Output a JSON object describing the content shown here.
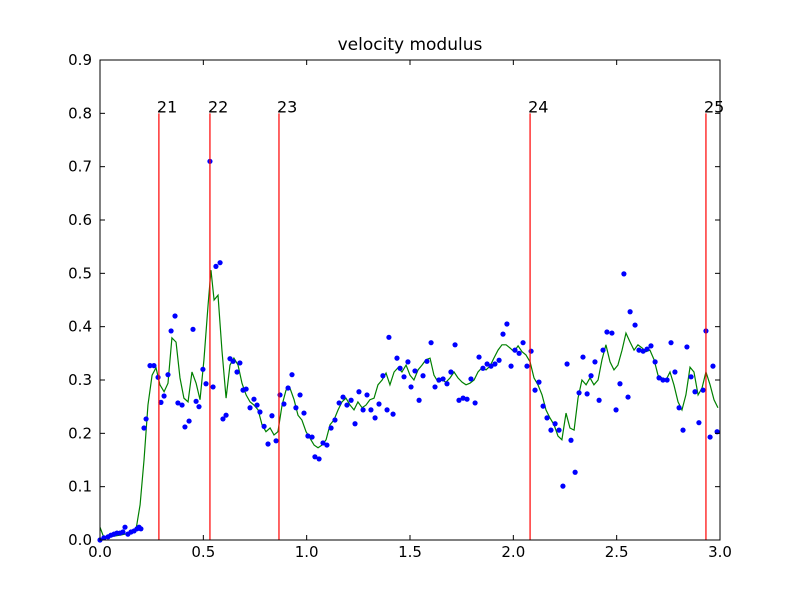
{
  "chart_data": {
    "type": "scatter",
    "title": "velocity modulus",
    "xlim": [
      0,
      3
    ],
    "ylim": [
      0,
      0.9
    ],
    "xticks": [
      {
        "value": 0,
        "label": "0.0"
      },
      {
        "value": 0.5,
        "label": "0.5"
      },
      {
        "value": 1,
        "label": "1.0"
      },
      {
        "value": 1.5,
        "label": "1.5"
      },
      {
        "value": 2,
        "label": "2.0"
      },
      {
        "value": 2.5,
        "label": "2.5"
      },
      {
        "value": 3,
        "label": "3.0"
      }
    ],
    "yticks": [
      {
        "value": 0,
        "label": "0.0"
      },
      0.1,
      0.2,
      0.3,
      0.4,
      0.5,
      0.6,
      0.7,
      0.8,
      0.9
    ],
    "markers": {
      "color": "#ff0000",
      "top": 0.8,
      "x": [
        0.285,
        0.532,
        0.866,
        2.081,
        2.932
      ],
      "labels": [
        "21",
        "22",
        "23",
        "24",
        "25"
      ]
    },
    "scatter": {
      "color": "#0000ff",
      "x": [
        0,
        0.019,
        0.039,
        0.053,
        0.068,
        0.082,
        0.097,
        0.111,
        0.121,
        0.135,
        0.15,
        0.165,
        0.179,
        0.189,
        0.198,
        0.213,
        0.223,
        0.242,
        0.261,
        0.281,
        0.295,
        0.31,
        0.329,
        0.344,
        0.363,
        0.377,
        0.397,
        0.411,
        0.431,
        0.45,
        0.465,
        0.479,
        0.498,
        0.513,
        0.532,
        0.547,
        0.561,
        0.581,
        0.595,
        0.61,
        0.629,
        0.644,
        0.663,
        0.677,
        0.692,
        0.707,
        0.726,
        0.745,
        0.76,
        0.774,
        0.794,
        0.813,
        0.832,
        0.852,
        0.871,
        0.89,
        0.91,
        0.929,
        0.948,
        0.968,
        0.987,
        1.006,
        1.026,
        1.04,
        1.06,
        1.079,
        1.098,
        1.118,
        1.137,
        1.157,
        1.176,
        1.195,
        1.215,
        1.234,
        1.253,
        1.273,
        1.292,
        1.311,
        1.331,
        1.35,
        1.369,
        1.389,
        1.398,
        1.418,
        1.437,
        1.452,
        1.471,
        1.49,
        1.505,
        1.524,
        1.544,
        1.563,
        1.582,
        1.602,
        1.621,
        1.64,
        1.66,
        1.679,
        1.698,
        1.718,
        1.737,
        1.757,
        1.776,
        1.795,
        1.815,
        1.834,
        1.853,
        1.873,
        1.892,
        1.911,
        1.931,
        1.95,
        1.969,
        1.989,
        2.008,
        2.028,
        2.047,
        2.066,
        2.086,
        2.105,
        2.124,
        2.144,
        2.163,
        2.182,
        2.202,
        2.221,
        2.24,
        2.26,
        2.279,
        2.299,
        2.318,
        2.337,
        2.357,
        2.376,
        2.395,
        2.415,
        2.434,
        2.453,
        2.477,
        2.497,
        2.516,
        2.535,
        2.555,
        2.565,
        2.589,
        2.608,
        2.628,
        2.647,
        2.666,
        2.686,
        2.705,
        2.724,
        2.744,
        2.763,
        2.782,
        2.802,
        2.821,
        2.84,
        2.86,
        2.879,
        2.898,
        2.918,
        2.932,
        2.952,
        2.966,
        2.986
      ],
      "values": [
        0,
        0.004,
        0.006,
        0.009,
        0.011,
        0.013,
        0.013,
        0.015,
        0.024,
        0.011,
        0.015,
        0.017,
        0.021,
        0.024,
        0.021,
        0.21,
        0.227,
        0.327,
        0.327,
        0.305,
        0.258,
        0.27,
        0.31,
        0.392,
        0.42,
        0.257,
        0.253,
        0.212,
        0.223,
        0.395,
        0.26,
        0.25,
        0.32,
        0.293,
        0.71,
        0.287,
        0.513,
        0.52,
        0.227,
        0.234,
        0.34,
        0.335,
        0.315,
        0.332,
        0.281,
        0.283,
        0.248,
        0.264,
        0.253,
        0.24,
        0.213,
        0.18,
        0.233,
        0.186,
        0.272,
        0.255,
        0.285,
        0.31,
        0.248,
        0.272,
        0.238,
        0.195,
        0.193,
        0.156,
        0.152,
        0.182,
        0.178,
        0.21,
        0.225,
        0.257,
        0.268,
        0.253,
        0.262,
        0.218,
        0.278,
        0.244,
        0.272,
        0.244,
        0.229,
        0.255,
        0.308,
        0.244,
        0.38,
        0.236,
        0.341,
        0.322,
        0.306,
        0.334,
        0.287,
        0.317,
        0.262,
        0.308,
        0.335,
        0.37,
        0.287,
        0.3,
        0.302,
        0.293,
        0.315,
        0.366,
        0.262,
        0.266,
        0.264,
        0.302,
        0.257,
        0.343,
        0.322,
        0.33,
        0.326,
        0.33,
        0.337,
        0.386,
        0.405,
        0.326,
        0.356,
        0.35,
        0.37,
        0.326,
        0.354,
        0.281,
        0.296,
        0.251,
        0.229,
        0.206,
        0.218,
        0.206,
        0.101,
        0.33,
        0.187,
        0.127,
        0.276,
        0.343,
        0.274,
        0.308,
        0.334,
        0.262,
        0.356,
        0.39,
        0.388,
        0.244,
        0.293,
        0.499,
        0.268,
        0.428,
        0.403,
        0.356,
        0.354,
        0.358,
        0.364,
        0.334,
        0.304,
        0.3,
        0.3,
        0.37,
        0.315,
        0.248,
        0.206,
        0.362,
        0.306,
        0.278,
        0.22,
        0.281,
        0.392,
        0.193,
        0.326,
        0.203
      ]
    },
    "line": {
      "color": "#008000",
      "x": [
        0,
        0.019,
        0.048,
        0.097,
        0.145,
        0.174,
        0.194,
        0.213,
        0.232,
        0.252,
        0.271,
        0.29,
        0.31,
        0.329,
        0.348,
        0.368,
        0.387,
        0.406,
        0.426,
        0.445,
        0.465,
        0.484,
        0.503,
        0.523,
        0.537,
        0.552,
        0.571,
        0.59,
        0.61,
        0.629,
        0.648,
        0.668,
        0.687,
        0.707,
        0.726,
        0.745,
        0.765,
        0.784,
        0.803,
        0.823,
        0.842,
        0.861,
        0.881,
        0.9,
        0.919,
        0.939,
        0.958,
        0.977,
        0.997,
        1.016,
        1.036,
        1.055,
        1.074,
        1.094,
        1.113,
        1.132,
        1.152,
        1.171,
        1.19,
        1.21,
        1.229,
        1.248,
        1.268,
        1.287,
        1.306,
        1.326,
        1.345,
        1.365,
        1.384,
        1.403,
        1.423,
        1.442,
        1.461,
        1.481,
        1.5,
        1.519,
        1.539,
        1.558,
        1.577,
        1.597,
        1.616,
        1.636,
        1.655,
        1.674,
        1.694,
        1.713,
        1.732,
        1.752,
        1.771,
        1.79,
        1.81,
        1.829,
        1.848,
        1.868,
        1.887,
        1.906,
        1.926,
        1.945,
        1.965,
        1.984,
        2.003,
        2.023,
        2.042,
        2.061,
        2.081,
        2.1,
        2.119,
        2.139,
        2.158,
        2.177,
        2.197,
        2.216,
        2.235,
        2.255,
        2.274,
        2.294,
        2.313,
        2.332,
        2.352,
        2.371,
        2.39,
        2.41,
        2.429,
        2.448,
        2.468,
        2.487,
        2.506,
        2.526,
        2.545,
        2.565,
        2.584,
        2.603,
        2.623,
        2.642,
        2.661,
        2.681,
        2.7,
        2.719,
        2.739,
        2.758,
        2.777,
        2.797,
        2.816,
        2.835,
        2.855,
        2.874,
        2.894,
        2.913,
        2.932,
        2.952,
        2.971,
        2.99
      ],
      "values": [
        0.024,
        0.004,
        0.006,
        0.009,
        0.013,
        0.019,
        0.066,
        0.15,
        0.253,
        0.309,
        0.323,
        0.291,
        0.278,
        0.294,
        0.379,
        0.371,
        0.304,
        0.266,
        0.259,
        0.315,
        0.294,
        0.263,
        0.338,
        0.441,
        0.506,
        0.45,
        0.459,
        0.356,
        0.266,
        0.328,
        0.341,
        0.328,
        0.294,
        0.272,
        0.259,
        0.253,
        0.244,
        0.216,
        0.203,
        0.21,
        0.197,
        0.203,
        0.253,
        0.281,
        0.285,
        0.263,
        0.234,
        0.225,
        0.203,
        0.191,
        0.178,
        0.173,
        0.178,
        0.188,
        0.216,
        0.225,
        0.244,
        0.259,
        0.266,
        0.253,
        0.244,
        0.259,
        0.248,
        0.253,
        0.263,
        0.266,
        0.291,
        0.3,
        0.313,
        0.291,
        0.315,
        0.323,
        0.315,
        0.328,
        0.309,
        0.3,
        0.319,
        0.328,
        0.338,
        0.341,
        0.309,
        0.296,
        0.3,
        0.296,
        0.304,
        0.315,
        0.304,
        0.296,
        0.291,
        0.294,
        0.3,
        0.315,
        0.323,
        0.319,
        0.326,
        0.341,
        0.356,
        0.366,
        0.366,
        0.36,
        0.353,
        0.364,
        0.353,
        0.347,
        0.334,
        0.304,
        0.291,
        0.272,
        0.244,
        0.229,
        0.216,
        0.195,
        0.188,
        0.238,
        0.21,
        0.206,
        0.266,
        0.3,
        0.291,
        0.304,
        0.291,
        0.3,
        0.338,
        0.366,
        0.334,
        0.319,
        0.328,
        0.356,
        0.388,
        0.371,
        0.356,
        0.366,
        0.36,
        0.353,
        0.356,
        0.338,
        0.309,
        0.304,
        0.3,
        0.315,
        0.291,
        0.259,
        0.244,
        0.272,
        0.324,
        0.315,
        0.272,
        0.285,
        0.315,
        0.291,
        0.263,
        0.248
      ]
    }
  }
}
